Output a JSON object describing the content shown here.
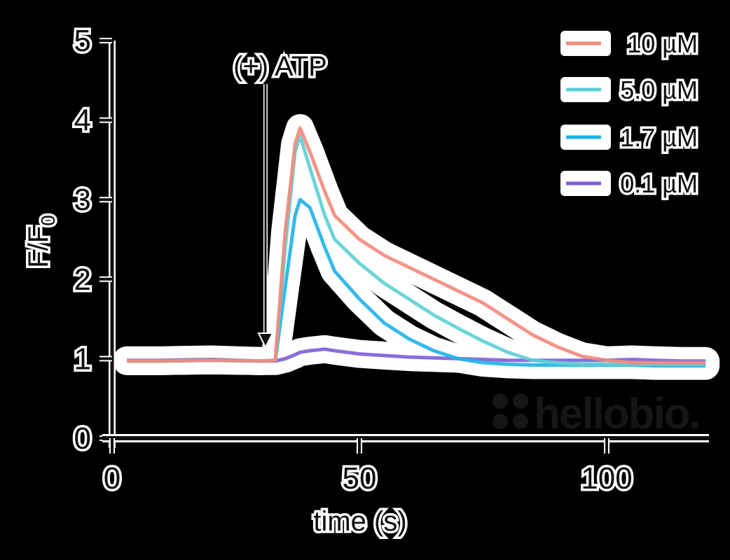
{
  "chart_data": {
    "type": "line",
    "title": "",
    "xlabel": "time (s)",
    "ylabel": "F/F0",
    "xlim": [
      0,
      120
    ],
    "ylim": [
      0,
      5
    ],
    "xticks": [
      0,
      50,
      100
    ],
    "yticks": [
      0,
      1,
      2,
      3,
      4,
      5
    ],
    "grid": false,
    "legend_position": "upper right",
    "annotations": [
      {
        "text": "(+) ATP",
        "x": 32,
        "arrow_to_y": 1.0
      }
    ],
    "x": [
      3,
      10,
      20,
      30,
      33,
      35,
      37,
      38,
      40,
      43,
      45,
      50,
      55,
      60,
      65,
      70,
      75,
      80,
      85,
      90,
      95,
      100,
      105,
      110,
      115,
      120
    ],
    "series": [
      {
        "name": "10 µM",
        "color": "#f28a7c",
        "values": [
          0.97,
          0.97,
          0.98,
          0.97,
          0.98,
          2.6,
          3.7,
          3.9,
          3.6,
          3.1,
          2.8,
          2.5,
          2.3,
          2.15,
          2.0,
          1.85,
          1.7,
          1.5,
          1.3,
          1.15,
          1.03,
          0.98,
          0.95,
          0.95,
          0.95,
          0.95
        ]
      },
      {
        "name": "5.0 µM",
        "color": "#5ccfd4",
        "values": [
          0.97,
          0.97,
          0.98,
          0.97,
          0.98,
          2.4,
          3.6,
          3.8,
          3.4,
          2.8,
          2.5,
          2.2,
          1.95,
          1.75,
          1.55,
          1.38,
          1.22,
          1.08,
          0.98,
          0.95,
          0.93,
          0.93,
          0.93,
          0.93,
          0.93,
          0.93
        ]
      },
      {
        "name": "1.7 µM",
        "color": "#1fb2e6",
        "values": [
          0.97,
          0.97,
          0.98,
          0.97,
          0.98,
          1.9,
          2.8,
          3.0,
          2.9,
          2.4,
          2.1,
          1.75,
          1.45,
          1.25,
          1.1,
          1.0,
          0.95,
          0.93,
          0.92,
          0.92,
          0.92,
          0.92,
          0.92,
          0.91,
          0.91,
          0.91
        ]
      },
      {
        "name": "0.1 µM",
        "color": "#7b5fd6",
        "values": [
          0.98,
          0.98,
          0.99,
          0.97,
          0.97,
          1.0,
          1.05,
          1.08,
          1.1,
          1.12,
          1.1,
          1.06,
          1.04,
          1.02,
          1.01,
          1.0,
          0.99,
          0.98,
          0.98,
          0.98,
          0.98,
          0.98,
          0.99,
          0.98,
          0.97,
          0.97
        ]
      }
    ]
  },
  "text": {
    "ylabel_main": "F/F",
    "ylabel_sub": "0",
    "xlabel": "time (s)",
    "annotation": "(+) ATP",
    "logo": "hellobio.",
    "legend": [
      "10 µM",
      "5.0 µM",
      "1.7 µM",
      "0.1 µM"
    ],
    "xtick_labels": [
      "0",
      "50",
      "100"
    ],
    "ytick_labels": [
      "0",
      "1",
      "2",
      "3",
      "4",
      "5"
    ]
  },
  "style": {
    "background": "#000000",
    "axis_color": "#111111",
    "halo_color": "#ffffff"
  }
}
